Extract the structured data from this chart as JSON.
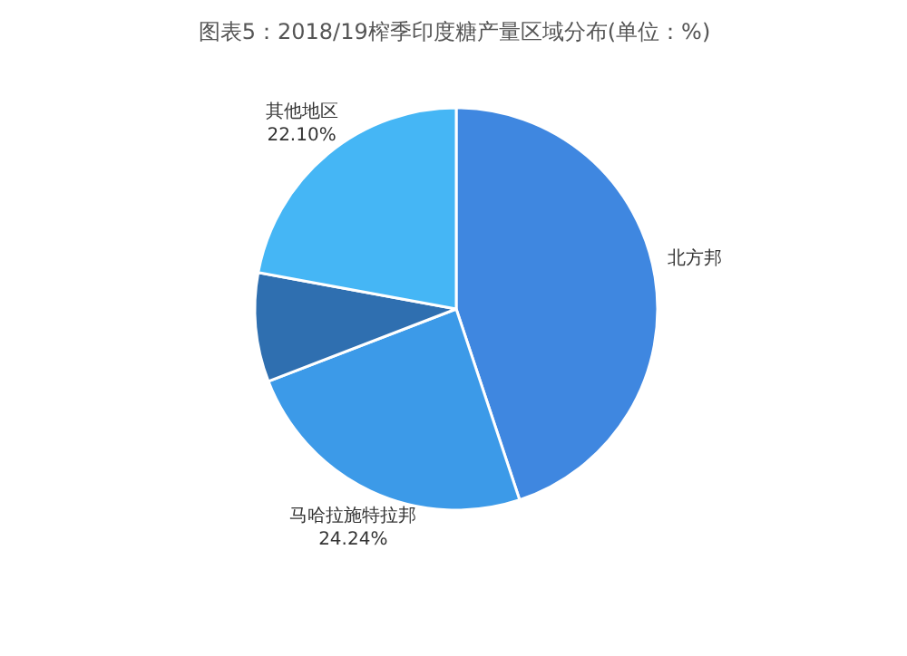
{
  "chart_data": {
    "type": "pie",
    "title": "图表5：2018/19榨季印度糖产量区域分布(单位：%)",
    "categories": [
      "北方邦",
      "马哈拉施特拉邦",
      null,
      "其他地区"
    ],
    "values": [
      44.9,
      24.24,
      8.76,
      22.1
    ],
    "value_labels": [
      null,
      "24.24%",
      null,
      "22.10%"
    ],
    "colors": [
      "#3f87e0",
      "#3c9ae8",
      "#2f6fb0",
      "#45b6f5"
    ]
  }
}
